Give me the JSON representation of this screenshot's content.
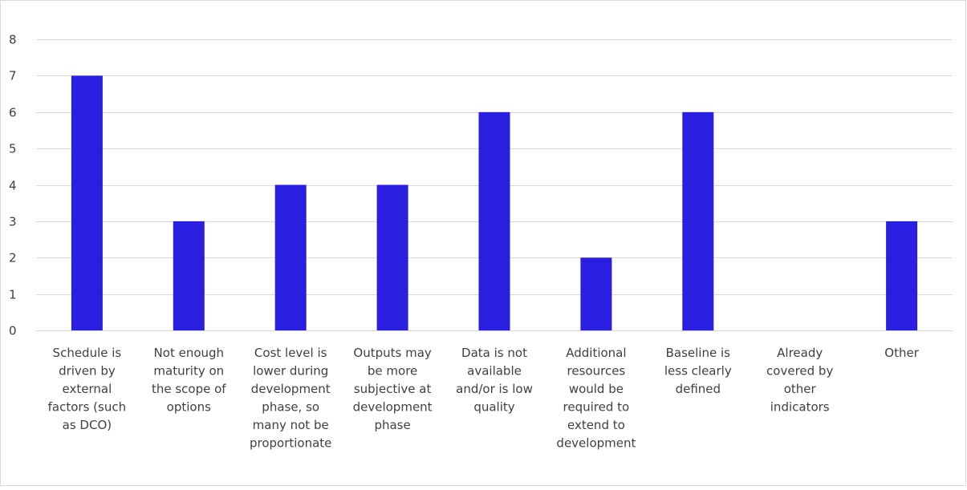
{
  "chart_data": {
    "type": "bar",
    "title": "",
    "xlabel": "",
    "ylabel": "",
    "ylim": [
      0,
      8
    ],
    "yticks": [
      0,
      1,
      2,
      3,
      4,
      5,
      6,
      7,
      8
    ],
    "grid": true,
    "legend": "none",
    "bar_color": "#2a1ee0",
    "grid_color": "#d9d9d9",
    "categories": [
      [
        "Schedule is",
        "driven by",
        "external",
        "factors (such",
        "as DCO)"
      ],
      [
        "Not enough",
        "maturity on",
        "the scope of",
        "options"
      ],
      [
        "Cost level is",
        "lower during",
        "development",
        "phase, so",
        "many not be",
        "proportionate"
      ],
      [
        "Outputs may",
        "be more",
        "subjective at",
        "development",
        "phase"
      ],
      [
        "Data is not",
        "available",
        "and/or is low",
        "quality"
      ],
      [
        "Additional",
        "resources",
        "would be",
        "required to",
        "extend to",
        "development"
      ],
      [
        "Baseline is",
        "less clearly",
        "defined"
      ],
      [
        "Already",
        "covered by",
        "other",
        "indicators"
      ],
      [
        "Other"
      ]
    ],
    "values": [
      7,
      3,
      4,
      4,
      6,
      2,
      6,
      0,
      3
    ]
  }
}
